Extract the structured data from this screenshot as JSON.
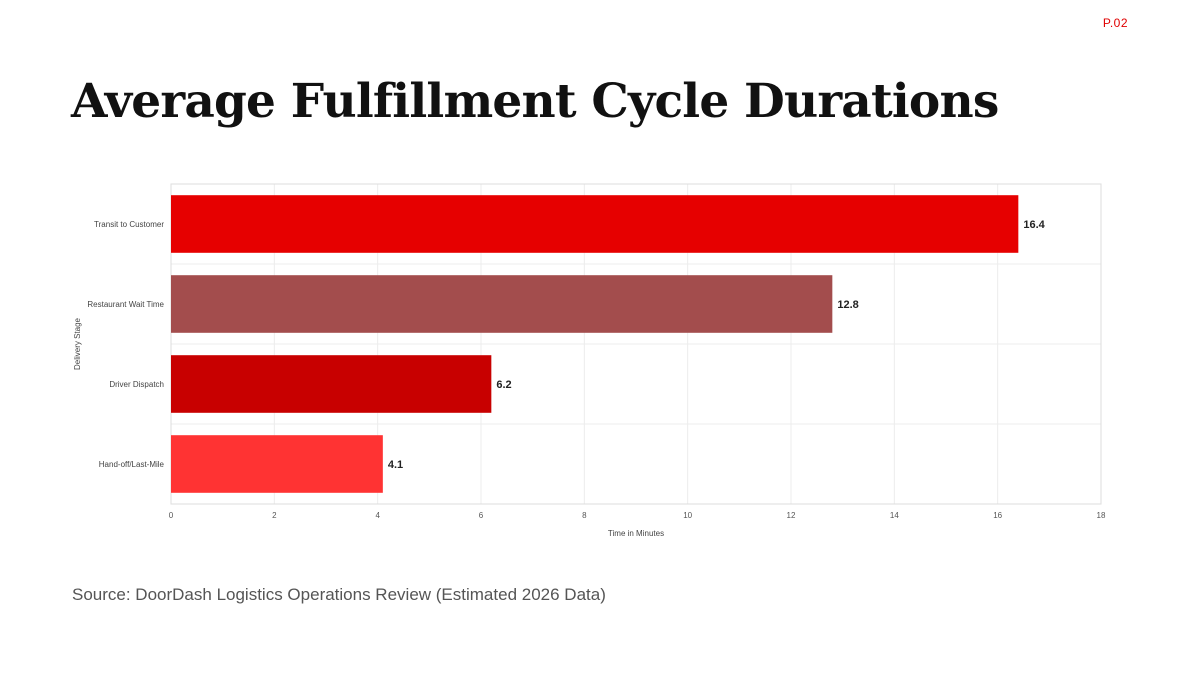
{
  "page": {
    "page_number": "P.02",
    "title": "Average Fulfillment Cycle Durations",
    "source": "Source: DoorDash Logistics Operations Review (Estimated 2026 Data)"
  },
  "chart_data": {
    "type": "bar",
    "orientation": "horizontal",
    "categories": [
      "Transit to Customer",
      "Restaurant Wait Time",
      "Driver Dispatch",
      "Hand-off/Last-Mile"
    ],
    "values": [
      16.4,
      12.8,
      6.2,
      4.1
    ],
    "value_labels": [
      "16.4",
      "12.8",
      "6.2",
      "4.1"
    ],
    "bar_colors": [
      "#e60000",
      "#a34d4d",
      "#c80000",
      "#ff3333"
    ],
    "xlabel": "Time in Minutes",
    "ylabel": "Delivery Stage",
    "xlim": [
      0,
      18
    ],
    "xticks": [
      0,
      2,
      4,
      6,
      8,
      10,
      12,
      14,
      16,
      18
    ],
    "grid": true,
    "legend": "none"
  }
}
